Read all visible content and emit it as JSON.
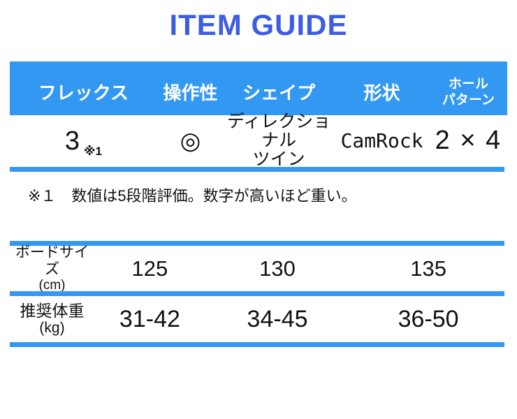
{
  "page": {
    "title": "ITEM GUIDE"
  },
  "colors": {
    "title_blue": "#3c5ce2",
    "bar_blue": "#3398f2",
    "text_dark": "#111111"
  },
  "spec_table": {
    "headers": [
      {
        "label": "フレックス"
      },
      {
        "label": "操作性"
      },
      {
        "label": "シェイプ"
      },
      {
        "label": "形状"
      },
      {
        "label_line1": "ホール",
        "label_line2": "パターン"
      }
    ],
    "values": {
      "flex": "3",
      "flex_note": "※1",
      "operability": "◎",
      "shape_line1": "ディレクショナル",
      "shape_line2": "ツイン",
      "camber": "CamRock",
      "hole_pattern": "2 × 4"
    },
    "footnote": "※１　数値は5段階評価。数字が高いほど重い。"
  },
  "size_table": {
    "rows": [
      {
        "label_line1": "ボードサイズ",
        "label_line2": "(cm)",
        "values": [
          "125",
          "130",
          "135"
        ]
      },
      {
        "label_line1": "推奨体重",
        "label_line2": "(kg)",
        "values": [
          "31-42",
          "34-45",
          "36-50"
        ]
      }
    ]
  }
}
